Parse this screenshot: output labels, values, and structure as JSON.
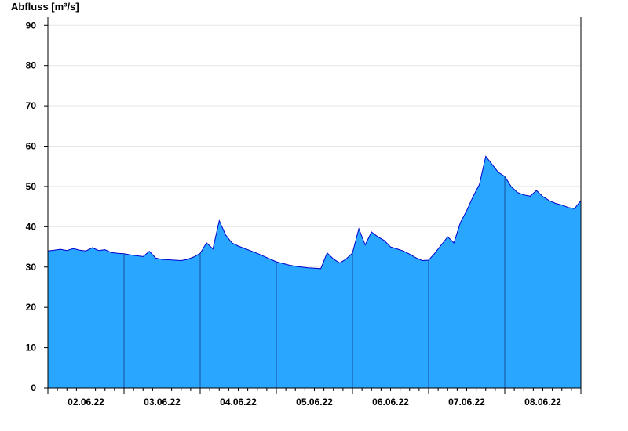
{
  "chart_data": {
    "type": "area",
    "title": "",
    "ylabel": "Abfluss [m³/s]",
    "xlabel": "",
    "ylim": [
      0,
      92
    ],
    "yticks": [
      0,
      10,
      20,
      30,
      40,
      50,
      60,
      70,
      80,
      90
    ],
    "xlim": [
      "2022-06-01T12:00",
      "2022-06-08T12:00"
    ],
    "x_tick_labels": [
      "02.06.22",
      "03.06.22",
      "04.06.22",
      "05.06.22",
      "06.06.22",
      "07.06.22",
      "08.06.22"
    ],
    "day_boundaries": [
      "2022-06-02T12:00",
      "2022-06-03T12:00",
      "2022-06-04T12:00",
      "2022-06-05T12:00",
      "2022-06-06T12:00",
      "2022-06-07T12:00"
    ],
    "grid": true,
    "fill_color": "#29a6ff",
    "line_color": "#0000cc",
    "series": [
      {
        "x": [
          "2022-06-01T12:00",
          "2022-06-01T14:00",
          "2022-06-01T16:00",
          "2022-06-01T18:00",
          "2022-06-01T20:00",
          "2022-06-01T22:00",
          "2022-06-02T00:00",
          "2022-06-02T02:00",
          "2022-06-02T04:00",
          "2022-06-02T06:00",
          "2022-06-02T08:00",
          "2022-06-02T10:00",
          "2022-06-02T12:00",
          "2022-06-02T14:00",
          "2022-06-02T16:00",
          "2022-06-02T18:00",
          "2022-06-02T20:00",
          "2022-06-02T22:00",
          "2022-06-03T00:00",
          "2022-06-03T02:00",
          "2022-06-03T04:00",
          "2022-06-03T06:00",
          "2022-06-03T08:00",
          "2022-06-03T10:00",
          "2022-06-03T12:00",
          "2022-06-03T14:00",
          "2022-06-03T16:00",
          "2022-06-03T18:00",
          "2022-06-03T20:00",
          "2022-06-03T22:00",
          "2022-06-04T00:00",
          "2022-06-04T02:00",
          "2022-06-04T04:00",
          "2022-06-04T06:00",
          "2022-06-04T08:00",
          "2022-06-04T10:00",
          "2022-06-04T12:00",
          "2022-06-04T14:00",
          "2022-06-04T16:00",
          "2022-06-04T18:00",
          "2022-06-04T20:00",
          "2022-06-04T22:00",
          "2022-06-05T00:00",
          "2022-06-05T02:00",
          "2022-06-05T04:00",
          "2022-06-05T06:00",
          "2022-06-05T08:00",
          "2022-06-05T10:00",
          "2022-06-05T12:00",
          "2022-06-05T14:00",
          "2022-06-05T16:00",
          "2022-06-05T18:00",
          "2022-06-05T20:00",
          "2022-06-05T22:00",
          "2022-06-06T00:00",
          "2022-06-06T02:00",
          "2022-06-06T04:00",
          "2022-06-06T06:00",
          "2022-06-06T08:00",
          "2022-06-06T10:00",
          "2022-06-06T12:00",
          "2022-06-06T14:00",
          "2022-06-06T16:00",
          "2022-06-06T18:00",
          "2022-06-06T20:00",
          "2022-06-06T22:00",
          "2022-06-07T00:00",
          "2022-06-07T02:00",
          "2022-06-07T04:00",
          "2022-06-07T06:00",
          "2022-06-07T08:00",
          "2022-06-07T10:00",
          "2022-06-07T12:00",
          "2022-06-07T14:00",
          "2022-06-07T16:00",
          "2022-06-07T18:00",
          "2022-06-07T20:00",
          "2022-06-07T22:00",
          "2022-06-08T00:00",
          "2022-06-08T02:00",
          "2022-06-08T04:00",
          "2022-06-08T06:00",
          "2022-06-08T08:00",
          "2022-06-08T10:00",
          "2022-06-08T12:00"
        ],
        "values": [
          34.0,
          34.2,
          34.4,
          34.1,
          34.6,
          34.2,
          34.0,
          34.8,
          34.1,
          34.3,
          33.6,
          33.4,
          33.3,
          33.0,
          32.8,
          32.6,
          33.9,
          32.2,
          31.9,
          31.8,
          31.7,
          31.6,
          31.9,
          32.5,
          33.4,
          36.0,
          34.5,
          41.5,
          38.0,
          36.0,
          35.2,
          34.6,
          34.0,
          33.4,
          32.7,
          32.0,
          31.3,
          30.9,
          30.5,
          30.2,
          30.0,
          29.8,
          29.7,
          29.6,
          33.5,
          32.0,
          31.0,
          32.0,
          33.5,
          39.5,
          35.5,
          38.7,
          37.5,
          36.6,
          35.0,
          34.5,
          34.0,
          33.2,
          32.3,
          31.6,
          31.7,
          33.5,
          35.5,
          37.5,
          36.0,
          41.0,
          44.0,
          47.5,
          50.5,
          57.5,
          55.5,
          53.5,
          52.5,
          50.0,
          48.5,
          47.9,
          47.6,
          49.0,
          47.5,
          46.5,
          45.8,
          45.4,
          44.8,
          44.5,
          46.5
        ]
      }
    ]
  }
}
